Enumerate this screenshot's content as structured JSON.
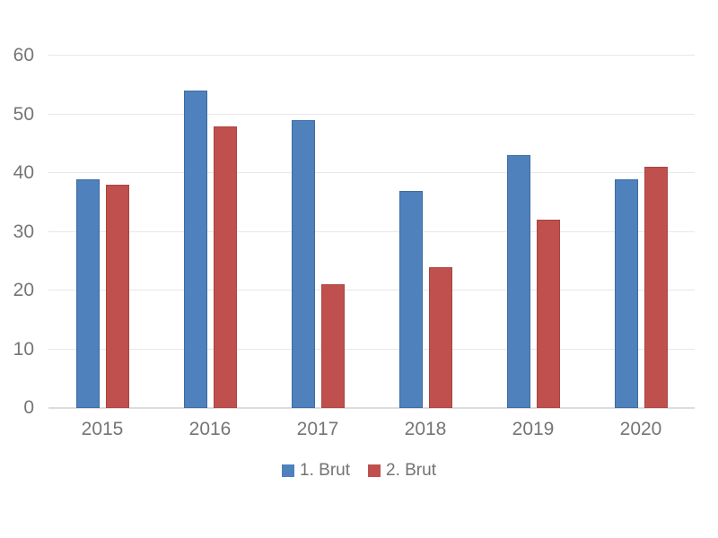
{
  "chart_data": {
    "type": "bar",
    "title": "",
    "categories": [
      "2015",
      "2016",
      "2017",
      "2018",
      "2019",
      "2020"
    ],
    "series": [
      {
        "name": "1. Brut",
        "values": [
          39,
          54,
          49,
          37,
          43,
          39
        ],
        "fill": "#4f81bd",
        "border": "#3c6ba3"
      },
      {
        "name": "2. Brut",
        "values": [
          38,
          48,
          21,
          24,
          32,
          41
        ],
        "fill": "#c0504d",
        "border": "#a9453f"
      }
    ],
    "xlabel": "",
    "ylabel": "",
    "ylim": [
      0,
      60
    ],
    "yticks": [
      0,
      10,
      20,
      30,
      40,
      50,
      60
    ],
    "grid": true,
    "legend_position": "bottom",
    "colors": {
      "axis_text": "#757575",
      "legend_text": "#737373",
      "gridline": "#e7e7e7",
      "axis_line": "#dcdcdc",
      "background": "#ffffff"
    }
  }
}
